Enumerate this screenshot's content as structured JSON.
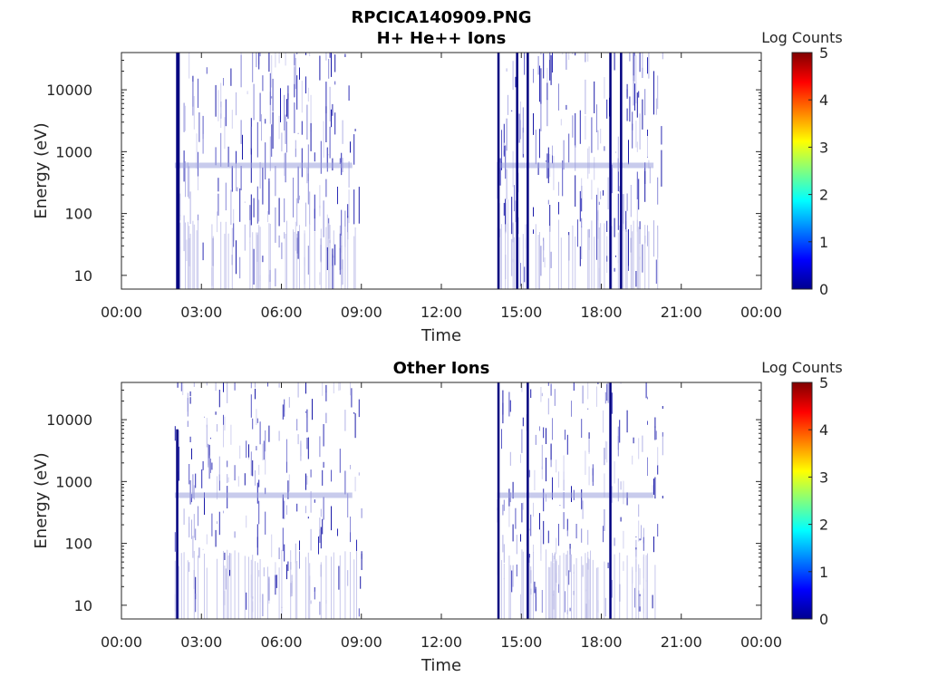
{
  "figure": {
    "title": "RPCICA140909.PNG"
  },
  "chart_data": [
    {
      "type": "heatmap",
      "title": "H+ He++ Ions",
      "xlabel": "Time",
      "ylabel": "Energy (eV)",
      "x_ticks": [
        "00:00",
        "03:00",
        "06:00",
        "09:00",
        "12:00",
        "15:00",
        "18:00",
        "21:00",
        "00:00"
      ],
      "x_range_hours": [
        0,
        24
      ],
      "y_ticks": [
        "10",
        "100",
        "1000",
        "10000"
      ],
      "y_scale": "log",
      "y_range": [
        6,
        40000
      ],
      "colorbar": {
        "label": "Log Counts",
        "range": [
          0,
          5
        ],
        "ticks": [
          "0",
          "1",
          "2",
          "3",
          "4",
          "5"
        ],
        "colormap": "jet"
      },
      "grid": false,
      "bursts": [
        {
          "start_hour": 2.0,
          "end_hour": 9.0
        },
        {
          "start_hour": 14.1,
          "end_hour": 20.3
        }
      ],
      "strong_channels_hours": [
        2.05,
        2.1,
        14.1,
        14.8,
        15.2,
        18.3,
        18.7
      ]
    },
    {
      "type": "heatmap",
      "title": "Other Ions",
      "xlabel": "Time",
      "ylabel": "Energy (eV)",
      "x_ticks": [
        "00:00",
        "03:00",
        "06:00",
        "09:00",
        "12:00",
        "15:00",
        "18:00",
        "21:00",
        "00:00"
      ],
      "x_range_hours": [
        0,
        24
      ],
      "y_ticks": [
        "10",
        "100",
        "1000",
        "10000"
      ],
      "y_scale": "log",
      "y_range": [
        6,
        40000
      ],
      "colorbar": {
        "label": "Log Counts",
        "range": [
          0,
          5
        ],
        "ticks": [
          "0",
          "1",
          "2",
          "3",
          "4",
          "5"
        ],
        "colormap": "jet"
      },
      "grid": false,
      "bursts": [
        {
          "start_hour": 2.0,
          "end_hour": 9.0
        },
        {
          "start_hour": 14.1,
          "end_hour": 20.3
        }
      ],
      "strong_channels_hours": [
        2.05,
        14.1,
        15.2,
        18.3
      ]
    }
  ]
}
